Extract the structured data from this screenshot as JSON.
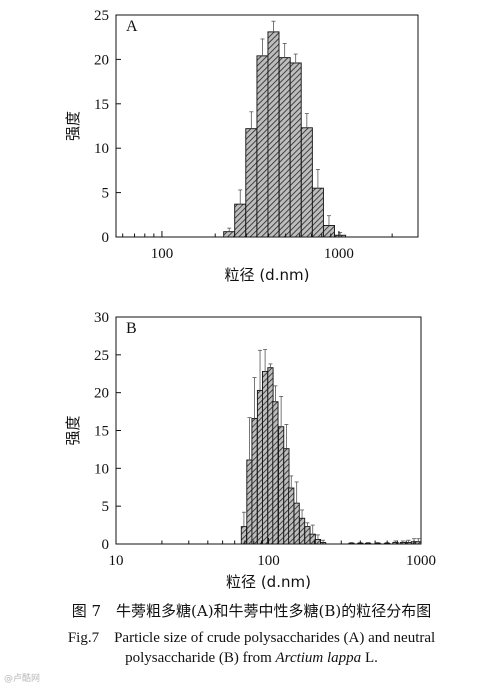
{
  "colors": {
    "axis": "#111111",
    "bar_fill": "#bdbdbd",
    "hatch": "#222222"
  },
  "chart_data": [
    {
      "type": "bar",
      "panel_label": "A",
      "xscale": "log",
      "xlim": [
        55,
        2800
      ],
      "ylim": [
        0,
        25
      ],
      "yticks": [
        0,
        5,
        10,
        15,
        20,
        25
      ],
      "xticks": [
        100,
        1000
      ],
      "ylabel": "强度",
      "xlabel": "粒径 (d.nm)",
      "bar_ratio": 1.155,
      "bars": [
        {
          "x": 240,
          "y": 0.6,
          "err": 0.4
        },
        {
          "x": 277,
          "y": 3.7,
          "err": 1.6
        },
        {
          "x": 320,
          "y": 12.2,
          "err": 1.9
        },
        {
          "x": 370,
          "y": 20.4,
          "err": 1.9
        },
        {
          "x": 427,
          "y": 23.1,
          "err": 1.2
        },
        {
          "x": 494,
          "y": 20.2,
          "err": 1.6
        },
        {
          "x": 570,
          "y": 19.6,
          "err": 1.0
        },
        {
          "x": 659,
          "y": 12.3,
          "err": 1.6
        },
        {
          "x": 761,
          "y": 5.5,
          "err": 2.1
        },
        {
          "x": 879,
          "y": 1.3,
          "err": 1.1
        },
        {
          "x": 1016,
          "y": 0.2,
          "err": 0.3
        }
      ]
    },
    {
      "type": "bar",
      "panel_label": "B",
      "xscale": "log",
      "xlim": [
        10,
        1000
      ],
      "ylim": [
        0,
        30
      ],
      "yticks": [
        0,
        5,
        10,
        15,
        20,
        25,
        30
      ],
      "xticks": [
        10,
        100,
        1000
      ],
      "ylabel": "强度",
      "xlabel": "粒径 (d.nm)",
      "bar_ratio": 1.083,
      "bars": [
        {
          "x": 69,
          "y": 2.3,
          "err": 1.9
        },
        {
          "x": 75,
          "y": 11.1,
          "err": 5.6
        },
        {
          "x": 81,
          "y": 16.6,
          "err": 5.4
        },
        {
          "x": 88,
          "y": 20.3,
          "err": 5.3
        },
        {
          "x": 95,
          "y": 22.8,
          "err": 2.9
        },
        {
          "x": 103,
          "y": 23.3,
          "err": 0.5
        },
        {
          "x": 111,
          "y": 18.8,
          "err": 2.1
        },
        {
          "x": 121,
          "y": 15.5,
          "err": 4.0
        },
        {
          "x": 131,
          "y": 12.6,
          "err": 3.2
        },
        {
          "x": 141,
          "y": 7.4,
          "err": 1.6
        },
        {
          "x": 153,
          "y": 5.4,
          "err": 2.8
        },
        {
          "x": 166,
          "y": 3.4,
          "err": 1.1
        },
        {
          "x": 180,
          "y": 2.3,
          "err": 0.5
        },
        {
          "x": 195,
          "y": 1.3,
          "err": 1.2
        },
        {
          "x": 211,
          "y": 0.6,
          "err": 0.6
        },
        {
          "x": 228,
          "y": 0.2,
          "err": 0.3
        },
        {
          "x": 350,
          "y": 0.1,
          "err": 0.1
        },
        {
          "x": 400,
          "y": 0.1,
          "err": 0.1
        },
        {
          "x": 450,
          "y": 0.1,
          "err": 0.1
        },
        {
          "x": 520,
          "y": 0.1,
          "err": 0.1
        },
        {
          "x": 600,
          "y": 0.1,
          "err": 0.1
        },
        {
          "x": 680,
          "y": 0.2,
          "err": 0.2
        },
        {
          "x": 760,
          "y": 0.2,
          "err": 0.2
        },
        {
          "x": 830,
          "y": 0.2,
          "err": 0.3
        },
        {
          "x": 900,
          "y": 0.3,
          "err": 0.4
        },
        {
          "x": 960,
          "y": 0.3,
          "err": 0.4
        }
      ]
    }
  ],
  "caption": {
    "zh": "图 7　牛蒡粗多糖(A)和牛蒡中性多糖(B)的粒径分布图",
    "en_line1": "Fig.7　Particle size of crude polysaccharides (A) and neutral",
    "en_line2_pre": "polysaccharide (B) from ",
    "en_line2_italic": "Arctium lappa",
    "en_line2_post": " L."
  },
  "watermark": "@卢酷网"
}
